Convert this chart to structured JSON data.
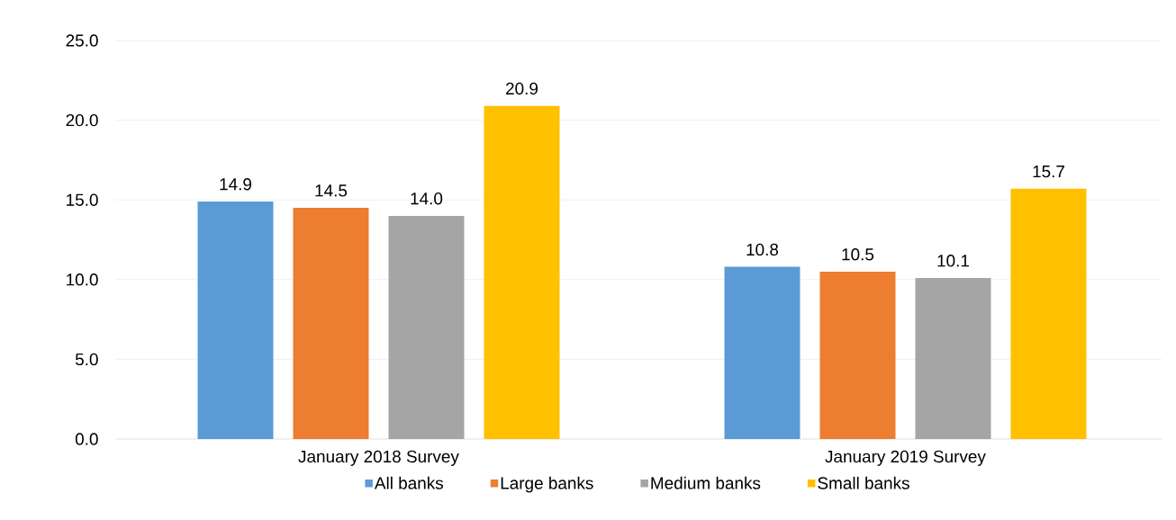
{
  "chart_data": {
    "type": "bar",
    "categories": [
      "January 2018 Survey",
      "January 2019 Survey"
    ],
    "series": [
      {
        "name": "All banks",
        "color": "#5b9bd5",
        "values": [
          14.9,
          10.8
        ],
        "value_labels": [
          "14.9",
          "10.8"
        ]
      },
      {
        "name": "Large banks",
        "color": "#ed7d31",
        "values": [
          14.5,
          10.5
        ],
        "value_labels": [
          "14.5",
          "10.5"
        ]
      },
      {
        "name": "Medium banks",
        "color": "#a5a5a5",
        "values": [
          14.0,
          10.1
        ],
        "value_labels": [
          "14.0",
          "10.1"
        ]
      },
      {
        "name": "Small banks",
        "color": "#ffc000",
        "values": [
          20.9,
          15.7
        ],
        "value_labels": [
          "20.9",
          "15.7"
        ]
      }
    ],
    "ylim": [
      0,
      25
    ],
    "yticks": [
      {
        "value": 0,
        "label": "0.0"
      },
      {
        "value": 5,
        "label": "5.0"
      },
      {
        "value": 10,
        "label": "10.0"
      },
      {
        "value": 15,
        "label": "15.0"
      },
      {
        "value": 20,
        "label": "20.0"
      },
      {
        "value": 25,
        "label": "25.0"
      }
    ],
    "grid": "y",
    "legend": "bottom"
  }
}
